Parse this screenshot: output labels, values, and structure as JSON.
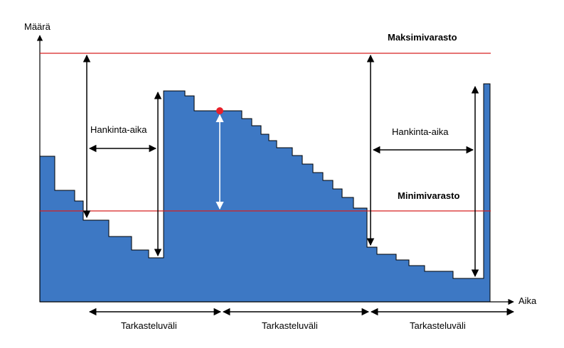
{
  "y_axis_label": "Määrä",
  "x_axis_label": "Aika",
  "max_level_label": "Maksimivarasto",
  "min_level_label": "Minimivarasto",
  "lead_time_label_1": "Hankinta-aika",
  "lead_time_label_2": "Hankinta-aika",
  "review_period_labels": [
    "Tarkasteluväli",
    "Tarkasteluväli",
    "Tarkasteluväli"
  ],
  "colors": {
    "inventory_fill": "#3d78c4",
    "inventory_edge": "#000000",
    "limit_lines": "#d62020",
    "order_point": "#e8202a",
    "axis": "#000000"
  }
}
